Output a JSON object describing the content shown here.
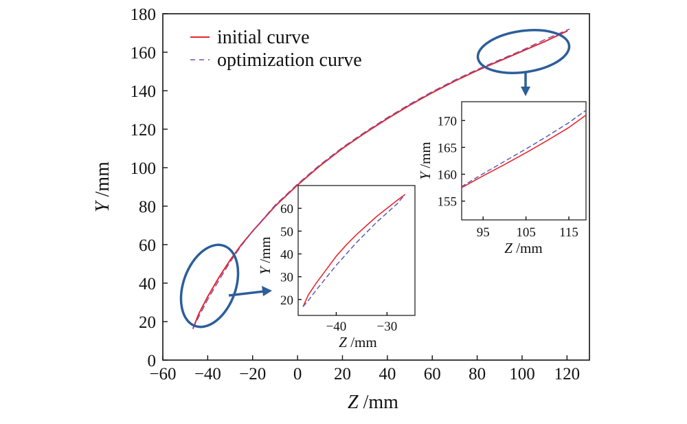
{
  "chart_data": [
    {
      "id": "main",
      "type": "line",
      "xlabel_var": "Z",
      "xlabel_unit": " /mm",
      "ylabel_var": "Y",
      "ylabel_unit": " /mm",
      "xlim": [
        -60,
        130
      ],
      "ylim": [
        0,
        180
      ],
      "xticks": [
        -60,
        -40,
        -20,
        0,
        20,
        40,
        60,
        80,
        100,
        120
      ],
      "yticks": [
        0,
        20,
        40,
        60,
        80,
        100,
        120,
        140,
        160,
        180
      ],
      "xtick_labels": [
        "−60",
        "−40",
        "−20",
        "0",
        "20",
        "40",
        "60",
        "80",
        "100",
        "120"
      ],
      "ytick_labels": [
        "0",
        "20",
        "40",
        "60",
        "80",
        "100",
        "120",
        "140",
        "160",
        "180"
      ],
      "legend_position": "top-left",
      "series": [
        {
          "name": "initial curve",
          "style": "solid",
          "color": "#e8242c",
          "points": [
            [
              -46.5,
              16.5
            ],
            [
              -44,
              24
            ],
            [
              -40,
              33
            ],
            [
              -35,
              43
            ],
            [
              -30,
              52
            ],
            [
              -25,
              60
            ],
            [
              -20,
              67
            ],
            [
              -10,
              80
            ],
            [
              0,
              91
            ],
            [
              10,
              101
            ],
            [
              20,
              110
            ],
            [
              30,
              118
            ],
            [
              40,
              125.5
            ],
            [
              50,
              132.5
            ],
            [
              60,
              139
            ],
            [
              70,
              145
            ],
            [
              80,
              150.5
            ],
            [
              90,
              155.5
            ],
            [
              100,
              160.5
            ],
            [
              110,
              165.5
            ],
            [
              120,
              171
            ]
          ]
        },
        {
          "name": "optimization curve",
          "style": "dashed",
          "color": "#7b4fa8",
          "points": [
            [
              -46.5,
              16.5
            ],
            [
              -44,
              22.5
            ],
            [
              -40,
              31.5
            ],
            [
              -35,
              41.5
            ],
            [
              -30,
              51
            ],
            [
              -25,
              59.5
            ],
            [
              -20,
              67
            ],
            [
              -10,
              80.5
            ],
            [
              0,
              91.5
            ],
            [
              10,
              101.5
            ],
            [
              20,
              110.5
            ],
            [
              30,
              118.5
            ],
            [
              40,
              126
            ],
            [
              50,
              133
            ],
            [
              60,
              139.5
            ],
            [
              70,
              145.5
            ],
            [
              80,
              151
            ],
            [
              90,
              156
            ],
            [
              100,
              161
            ],
            [
              110,
              166.5
            ],
            [
              121,
              172
            ]
          ]
        }
      ]
    },
    {
      "id": "inset-low",
      "type": "line",
      "xlabel_var": "Z",
      "xlabel_unit": " /mm",
      "ylabel_var": "Y",
      "ylabel_unit": " /mm",
      "xlim": [
        -47.5,
        -24.5
      ],
      "ylim": [
        13,
        70
      ],
      "xticks": [
        -40,
        -30
      ],
      "yticks": [
        20,
        30,
        40,
        50,
        60
      ],
      "xtick_labels": [
        "−40",
        "−30"
      ],
      "ytick_labels": [
        "20",
        "30",
        "40",
        "50",
        "60"
      ],
      "series": [
        {
          "name": "initial curve",
          "style": "solid",
          "color": "#e8242c",
          "points": [
            [
              -46.5,
              17
            ],
            [
              -45.5,
              22
            ],
            [
              -44,
              27
            ],
            [
              -42,
              33
            ],
            [
              -40,
              39
            ],
            [
              -38,
              44
            ],
            [
              -36,
              48.5
            ],
            [
              -34,
              52.5
            ],
            [
              -32,
              56.5
            ],
            [
              -30,
              60
            ],
            [
              -28,
              63.5
            ],
            [
              -26.5,
              66
            ]
          ]
        },
        {
          "name": "optimization curve",
          "style": "dashed",
          "color": "#5a5ab4",
          "points": [
            [
              -46.5,
              17
            ],
            [
              -45.5,
              19.5
            ],
            [
              -44,
              24
            ],
            [
              -42,
              29.5
            ],
            [
              -40,
              35
            ],
            [
              -38,
              40
            ],
            [
              -36,
              45
            ],
            [
              -34,
              49.5
            ],
            [
              -32,
              54
            ],
            [
              -30,
              58
            ],
            [
              -28,
              62
            ],
            [
              -26.5,
              66
            ]
          ]
        }
      ]
    },
    {
      "id": "inset-high",
      "type": "line",
      "xlabel_var": "Z",
      "xlabel_unit": " /mm",
      "ylabel_var": "Y",
      "ylabel_unit": " /mm",
      "xlim": [
        90,
        119
      ],
      "ylim": [
        151.5,
        173.5
      ],
      "xticks": [
        95,
        105,
        115
      ],
      "yticks": [
        155,
        160,
        165,
        170
      ],
      "xtick_labels": [
        "95",
        "105",
        "115"
      ],
      "ytick_labels": [
        "155",
        "160",
        "165",
        "170"
      ],
      "series": [
        {
          "name": "initial curve",
          "style": "solid",
          "color": "#e8242c",
          "points": [
            [
              90,
              157.5
            ],
            [
              95,
              159.7
            ],
            [
              100,
              161.8
            ],
            [
              105,
              164
            ],
            [
              110,
              166.3
            ],
            [
              115,
              168.7
            ],
            [
              119,
              171
            ]
          ]
        },
        {
          "name": "optimization curve",
          "style": "dashed",
          "color": "#5a5ab4",
          "points": [
            [
              90,
              157.7
            ],
            [
              95,
              160.1
            ],
            [
              100,
              162.4
            ],
            [
              105,
              164.7
            ],
            [
              110,
              167.1
            ],
            [
              115,
              169.6
            ],
            [
              119,
              171.9
            ]
          ]
        }
      ]
    }
  ],
  "colors": {
    "axis": "#111111",
    "annotation": "#2c5e9a"
  }
}
